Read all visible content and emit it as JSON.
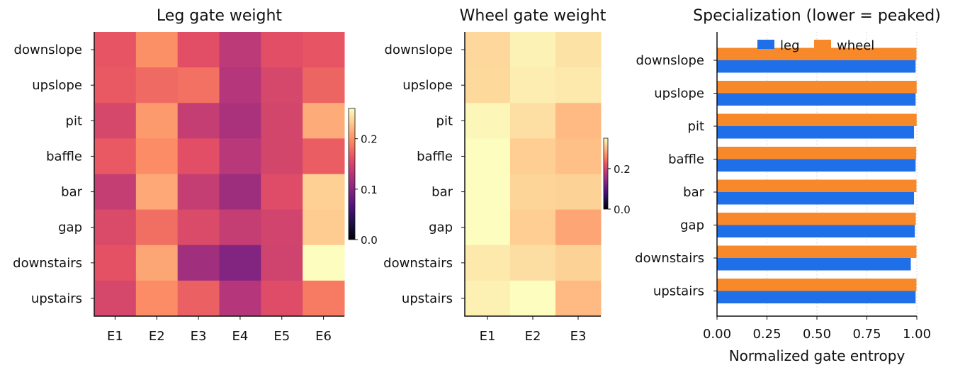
{
  "chart_data": [
    {
      "type": "heatmap",
      "title": "Leg gate weight",
      "rows": [
        "downslope",
        "upslope",
        "pit",
        "baffle",
        "bar",
        "gap",
        "downstairs",
        "upstairs"
      ],
      "columns": [
        "E1",
        "E2",
        "E3",
        "E4",
        "E5",
        "E6"
      ],
      "values": [
        [
          0.165,
          0.2,
          0.16,
          0.135,
          0.16,
          0.165
        ],
        [
          0.168,
          0.178,
          0.182,
          0.13,
          0.152,
          0.175
        ],
        [
          0.152,
          0.205,
          0.14,
          0.123,
          0.15,
          0.215
        ],
        [
          0.168,
          0.198,
          0.16,
          0.132,
          0.15,
          0.17
        ],
        [
          0.14,
          0.213,
          0.14,
          0.115,
          0.158,
          0.235
        ],
        [
          0.155,
          0.18,
          0.155,
          0.14,
          0.148,
          0.233
        ],
        [
          0.163,
          0.212,
          0.117,
          0.098,
          0.147,
          0.263
        ],
        [
          0.152,
          0.198,
          0.172,
          0.13,
          0.158,
          0.188
        ]
      ],
      "colorbar": {
        "min": 0.0,
        "max": 0.26,
        "ticks": [
          0.0,
          0.1,
          0.2
        ],
        "tick_labels": [
          "0.0",
          "0.1",
          "0.2"
        ],
        "colormap": "magma"
      }
    },
    {
      "type": "heatmap",
      "title": "Wheel gate weight",
      "rows": [
        "downslope",
        "upslope",
        "pit",
        "baffle",
        "bar",
        "gap",
        "downstairs",
        "upstairs"
      ],
      "columns": [
        "E1",
        "E2",
        "E3"
      ],
      "values": [
        [
          0.322,
          0.342,
          0.33
        ],
        [
          0.323,
          0.338,
          0.335
        ],
        [
          0.345,
          0.328,
          0.3
        ],
        [
          0.365,
          0.315,
          0.305
        ],
        [
          0.357,
          0.32,
          0.318
        ],
        [
          0.4,
          0.315,
          0.285
        ],
        [
          0.335,
          0.327,
          0.318
        ],
        [
          0.34,
          0.36,
          0.3
        ]
      ],
      "colorbar": {
        "min": 0.0,
        "max": 0.35,
        "ticks": [
          0.0,
          0.2
        ],
        "tick_labels": [
          "0.0",
          "0.2"
        ],
        "colormap": "magma"
      }
    },
    {
      "type": "bar",
      "orientation": "horizontal",
      "title": "Specialization (lower = peaked)",
      "xlabel": "Normalized gate entropy",
      "categories": [
        "downslope",
        "upslope",
        "pit",
        "baffle",
        "bar",
        "gap",
        "downstairs",
        "upstairs"
      ],
      "series": [
        {
          "name": "leg",
          "color": "#1f6fe8",
          "values": [
            0.994,
            0.994,
            0.986,
            0.994,
            0.986,
            0.99,
            0.97,
            0.994
          ]
        },
        {
          "name": "wheel",
          "color": "#f7892b",
          "values": [
            0.998,
            0.999,
            0.999,
            0.997,
            0.998,
            0.995,
            0.998,
            0.998
          ]
        }
      ],
      "xlim": [
        0.0,
        1.0
      ],
      "xticks": [
        0.0,
        0.25,
        0.5,
        0.75,
        1.0
      ],
      "xtick_labels": [
        "0.00",
        "0.25",
        "0.50",
        "0.75",
        "1.00"
      ],
      "grid": "vertical-dotted",
      "legend": "top"
    }
  ]
}
